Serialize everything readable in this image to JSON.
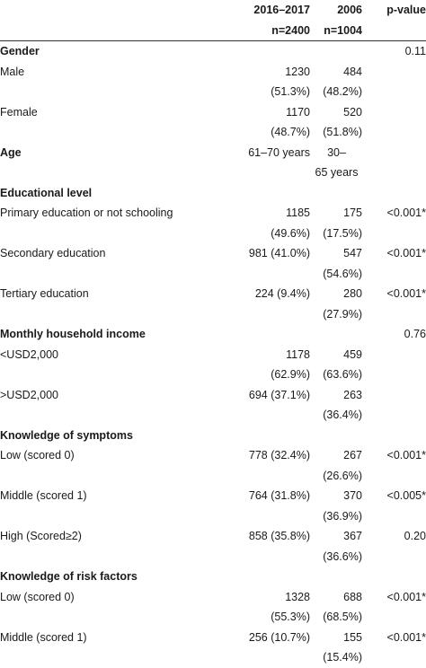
{
  "header": {
    "col1": "2016–2017",
    "col2": "2006",
    "col3": "p-value",
    "n1": "n=2400",
    "n2": "n=1004"
  },
  "rows": [
    {
      "type": "section",
      "label": "Gender",
      "p": "0.11"
    },
    {
      "type": "row",
      "label": "Male",
      "a": "1230",
      "b": "484",
      "p": ""
    },
    {
      "type": "cont",
      "a": "(51.3%)",
      "b": "(48.2%)"
    },
    {
      "type": "row",
      "label": "Female",
      "a": "1170",
      "b": "520",
      "p": ""
    },
    {
      "type": "cont",
      "a": "(48.7%)",
      "b": "(51.8%)"
    },
    {
      "type": "section",
      "label": "Age",
      "a": "61–70 years",
      "b": "30–",
      "p": ""
    },
    {
      "type": "cont",
      "a": "",
      "b": "65 years"
    },
    {
      "type": "section",
      "label": "Educational level",
      "p": ""
    },
    {
      "type": "row",
      "label": "Primary education or not schooling",
      "a": "1185",
      "b": "175",
      "p": "<0.001*"
    },
    {
      "type": "cont",
      "a": "(49.6%)",
      "b": "(17.5%)"
    },
    {
      "type": "row",
      "label": "Secondary education",
      "a": "981 (41.0%)",
      "b": "547",
      "p": "<0.001*"
    },
    {
      "type": "cont",
      "a": "",
      "b": "(54.6%)"
    },
    {
      "type": "row",
      "label": "Tertiary education",
      "a": "224 (9.4%)",
      "b": "280",
      "p": "<0.001*"
    },
    {
      "type": "cont",
      "a": "",
      "b": "(27.9%)"
    },
    {
      "type": "section",
      "label": "Monthly household income",
      "p": "0.76"
    },
    {
      "type": "row",
      "label": "<USD2,000",
      "a": "1178",
      "b": "459",
      "p": ""
    },
    {
      "type": "cont",
      "a": "(62.9%)",
      "b": "(63.6%)"
    },
    {
      "type": "row",
      "label": ">USD2,000",
      "a": "694 (37.1%)",
      "b": "263",
      "p": ""
    },
    {
      "type": "cont",
      "a": "",
      "b": "(36.4%)"
    },
    {
      "type": "section",
      "label": "Knowledge of symptoms",
      "p": ""
    },
    {
      "type": "row",
      "label": "Low (scored 0)",
      "a": "778 (32.4%)",
      "b": "267",
      "p": "<0.001*"
    },
    {
      "type": "cont",
      "a": "",
      "b": "(26.6%)"
    },
    {
      "type": "row",
      "label": "Middle (scored 1)",
      "a": "764 (31.8%)",
      "b": "370",
      "p": "<0.005*"
    },
    {
      "type": "cont",
      "a": "",
      "b": "(36.9%)"
    },
    {
      "type": "row",
      "label": "High (Scored≥2)",
      "a": "858 (35.8%)",
      "b": "367",
      "p": "0.20"
    },
    {
      "type": "cont",
      "a": "",
      "b": "(36.6%)"
    },
    {
      "type": "section",
      "label": "Knowledge of risk factors",
      "p": ""
    },
    {
      "type": "row",
      "label": "Low (scored 0)",
      "a": "1328",
      "b": "688",
      "p": "<0.001*"
    },
    {
      "type": "cont",
      "a": "(55.3%)",
      "b": "(68.5%)"
    },
    {
      "type": "row",
      "label": "Middle (scored 1)",
      "a": "256 (10.7%)",
      "b": "155",
      "p": "<0.001*"
    },
    {
      "type": "cont",
      "a": "",
      "b": "(15.4%)"
    }
  ]
}
